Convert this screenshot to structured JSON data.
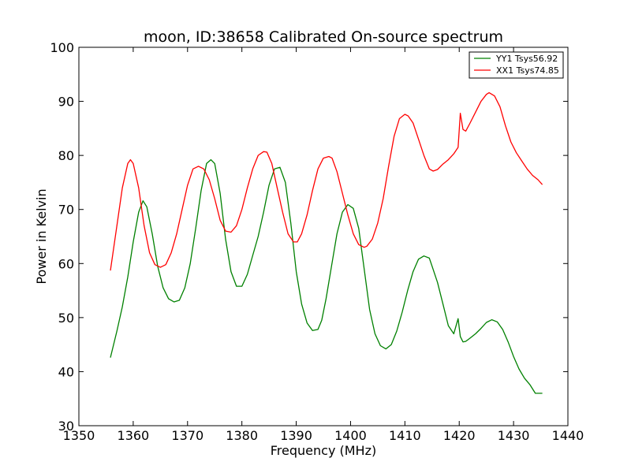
{
  "chart_data": {
    "type": "line",
    "title": "moon, ID:38658 Calibrated On-source spectrum",
    "xlabel": "Frequency (MHz)",
    "ylabel": "Power in Kelvin",
    "xlim": [
      1350,
      1440
    ],
    "ylim": [
      30,
      100
    ],
    "xticks": [
      1350,
      1360,
      1370,
      1380,
      1390,
      1400,
      1410,
      1420,
      1430,
      1440
    ],
    "yticks": [
      30,
      40,
      50,
      60,
      70,
      80,
      90,
      100
    ],
    "grid": false,
    "legend_position": "top-right",
    "series": [
      {
        "name": "YY1 Tsys56.92",
        "color": "#008000",
        "x": [
          1355.8,
          1357.0,
          1358.0,
          1359.0,
          1360.0,
          1361.0,
          1361.8,
          1362.5,
          1363.5,
          1364.5,
          1365.5,
          1366.5,
          1367.5,
          1368.5,
          1369.5,
          1370.5,
          1371.5,
          1372.5,
          1373.5,
          1374.3,
          1375.0,
          1376.0,
          1377.0,
          1378.0,
          1379.0,
          1380.0,
          1381.0,
          1382.0,
          1383.0,
          1384.0,
          1385.0,
          1386.0,
          1387.0,
          1388.0,
          1389.0,
          1390.0,
          1391.0,
          1392.0,
          1393.0,
          1394.0,
          1394.7,
          1395.5,
          1396.5,
          1397.5,
          1398.5,
          1399.5,
          1400.5,
          1401.5,
          1402.5,
          1403.5,
          1404.5,
          1405.5,
          1406.5,
          1407.5,
          1408.5,
          1409.5,
          1410.5,
          1411.5,
          1412.5,
          1413.5,
          1414.5,
          1415.0,
          1416.0,
          1417.0,
          1418.0,
          1419.0,
          1419.8,
          1420.2,
          1420.7,
          1421.2,
          1422.0,
          1423.0,
          1424.0,
          1425.0,
          1426.0,
          1427.0,
          1428.0,
          1429.0,
          1430.0,
          1431.0,
          1432.0,
          1433.0,
          1434.0,
          1435.3
        ],
        "values": [
          42.6,
          47.5,
          52.0,
          57.5,
          64.0,
          69.5,
          71.6,
          70.5,
          65.5,
          59.5,
          55.5,
          53.5,
          52.9,
          53.2,
          55.5,
          60.0,
          66.5,
          73.5,
          78.5,
          79.2,
          78.5,
          73.0,
          64.5,
          58.5,
          55.8,
          55.8,
          58.0,
          61.5,
          65.0,
          69.5,
          74.5,
          77.5,
          77.8,
          75.0,
          67.5,
          58.5,
          52.5,
          49.0,
          47.6,
          47.8,
          49.5,
          53.5,
          59.5,
          65.5,
          69.5,
          70.9,
          70.2,
          66.5,
          59.0,
          51.5,
          47.0,
          44.8,
          44.2,
          45.0,
          47.5,
          51.0,
          55.0,
          58.5,
          60.8,
          61.4,
          61.0,
          59.5,
          56.5,
          52.5,
          48.5,
          47.0,
          49.8,
          46.5,
          45.5,
          45.6,
          46.2,
          47.0,
          48.0,
          49.1,
          49.6,
          49.2,
          47.8,
          45.5,
          42.8,
          40.5,
          38.8,
          37.6,
          36.0,
          36.0
        ]
      },
      {
        "name": "XX1 Tsys74.85",
        "color": "#ff0000",
        "x": [
          1355.8,
          1357.0,
          1358.0,
          1359.0,
          1359.5,
          1360.0,
          1361.0,
          1362.0,
          1363.0,
          1364.0,
          1365.0,
          1366.0,
          1367.0,
          1368.0,
          1369.0,
          1370.0,
          1371.0,
          1372.0,
          1373.0,
          1374.0,
          1375.0,
          1376.0,
          1377.0,
          1378.0,
          1379.0,
          1380.0,
          1381.0,
          1382.0,
          1383.0,
          1384.0,
          1384.6,
          1385.5,
          1386.5,
          1387.5,
          1388.5,
          1389.5,
          1390.2,
          1391.0,
          1392.0,
          1393.0,
          1394.0,
          1395.0,
          1396.0,
          1396.6,
          1397.5,
          1398.5,
          1399.5,
          1400.5,
          1401.5,
          1402.5,
          1403.0,
          1404.0,
          1405.0,
          1406.0,
          1407.0,
          1408.0,
          1409.0,
          1410.0,
          1410.6,
          1411.5,
          1412.5,
          1413.5,
          1414.5,
          1415.2,
          1416.0,
          1417.0,
          1418.0,
          1419.0,
          1419.8,
          1420.2,
          1420.7,
          1421.2,
          1422.0,
          1423.0,
          1424.0,
          1425.0,
          1425.5,
          1426.5,
          1427.5,
          1428.5,
          1429.5,
          1430.5,
          1431.5,
          1432.5,
          1433.5,
          1434.5,
          1435.3
        ],
        "values": [
          58.7,
          67.0,
          74.0,
          78.5,
          79.2,
          78.5,
          74.0,
          67.0,
          62.0,
          59.8,
          59.3,
          59.8,
          62.0,
          65.5,
          70.0,
          74.5,
          77.5,
          78.0,
          77.5,
          75.5,
          72.0,
          68.0,
          66.0,
          65.8,
          67.0,
          70.0,
          74.0,
          77.5,
          80.0,
          80.7,
          80.6,
          78.5,
          74.0,
          69.5,
          65.5,
          64.0,
          64.0,
          65.5,
          69.0,
          73.5,
          77.5,
          79.5,
          79.8,
          79.5,
          77.0,
          73.0,
          69.0,
          65.5,
          63.5,
          63.0,
          63.2,
          64.5,
          67.5,
          72.0,
          78.0,
          83.5,
          86.8,
          87.6,
          87.3,
          86.0,
          83.0,
          80.0,
          77.5,
          77.1,
          77.4,
          78.4,
          79.2,
          80.3,
          81.5,
          87.8,
          84.8,
          84.5,
          86.0,
          88.0,
          90.0,
          91.3,
          91.6,
          91.0,
          89.0,
          85.5,
          82.5,
          80.5,
          79.0,
          77.5,
          76.3,
          75.5,
          74.6
        ]
      }
    ]
  }
}
